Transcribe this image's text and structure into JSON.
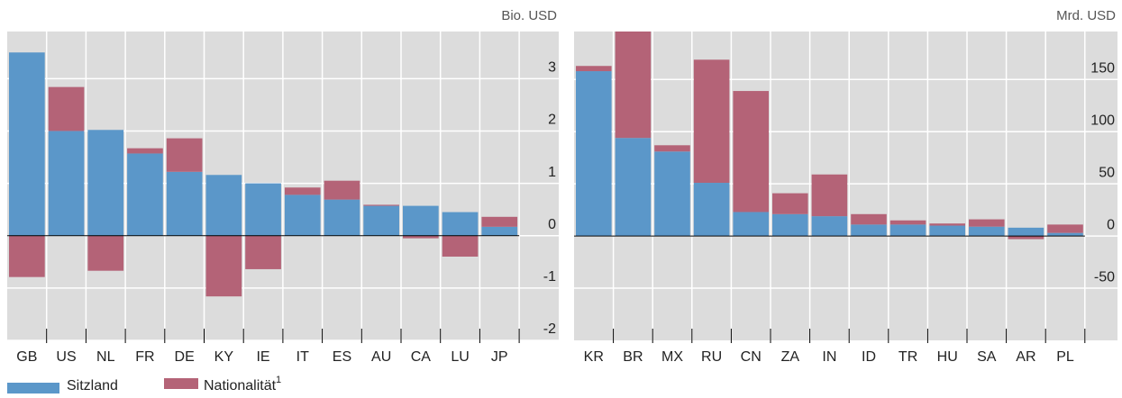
{
  "chart_data": [
    {
      "type": "bar",
      "stacked": true,
      "unit_label": "Bio. USD",
      "categories": [
        "GB",
        "US",
        "NL",
        "FR",
        "DE",
        "KY",
        "IE",
        "IT",
        "ES",
        "AU",
        "CA",
        "LU",
        "JP"
      ],
      "series": [
        {
          "name": "Sitzland",
          "color": "#5b97c9",
          "values": [
            3.5,
            2.0,
            2.02,
            1.57,
            1.22,
            1.16,
            1.0,
            0.78,
            0.69,
            0.57,
            0.57,
            0.45,
            0.17
          ]
        },
        {
          "name": "Nationalität",
          "name_footnote": "1",
          "color": "#b46377",
          "values": [
            -0.79,
            0.84,
            -0.67,
            0.1,
            0.64,
            -1.16,
            -0.64,
            0.14,
            0.36,
            0.02,
            -0.05,
            -0.4,
            0.19
          ]
        }
      ],
      "ylim": [
        -2,
        3.9
      ],
      "yticks": [
        -2,
        -1,
        0,
        1,
        2,
        3
      ],
      "grid": true
    },
    {
      "type": "bar",
      "stacked": true,
      "unit_label": "Mrd. USD",
      "categories": [
        "KR",
        "BR",
        "MX",
        "RU",
        "CN",
        "ZA",
        "IN",
        "ID",
        "TR",
        "HU",
        "SA",
        "AR",
        "PL"
      ],
      "series": [
        {
          "color": "#5b97c9",
          "values": [
            158,
            94,
            81,
            51,
            23,
            21,
            19,
            11,
            11,
            10,
            9,
            8,
            3
          ]
        },
        {
          "color": "#b46377",
          "values": [
            5,
            102,
            6,
            118,
            116,
            20,
            40,
            10,
            4,
            2,
            7,
            -3,
            8
          ]
        }
      ],
      "ylim": [
        -100,
        196
      ],
      "yticks": [
        -50,
        0,
        50,
        100,
        150
      ],
      "grid": true
    }
  ]
}
